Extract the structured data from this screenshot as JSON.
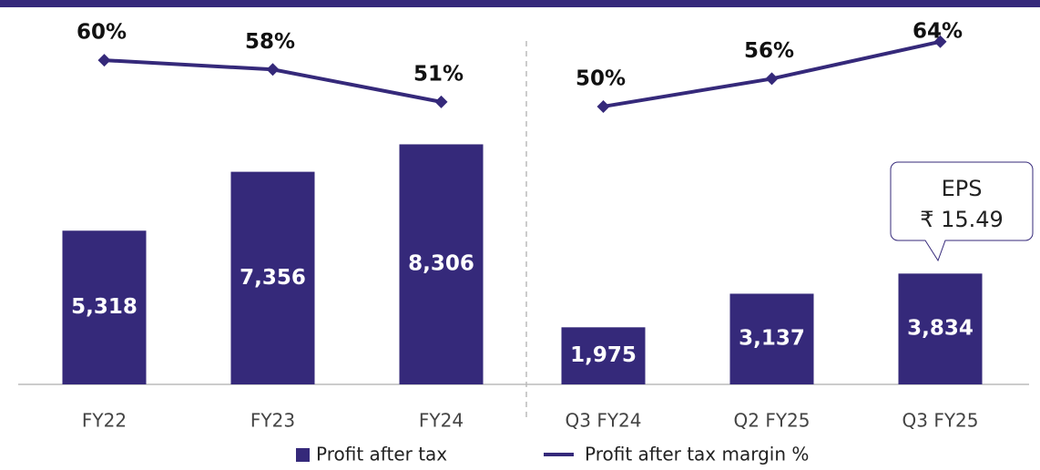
{
  "chart_data": {
    "type": "bar-line",
    "groups": [
      [
        "FY22",
        "FY23",
        "FY24"
      ],
      [
        "Q3 FY24",
        "Q2 FY25",
        "Q3 FY25"
      ]
    ],
    "series": [
      {
        "name": "Profit after tax",
        "type": "bar",
        "color": "#35297a",
        "values": [
          [
            5318,
            7356,
            8306
          ],
          [
            1975,
            3137,
            3834
          ]
        ],
        "value_labels": [
          [
            "5,318",
            "7,356",
            "8,306"
          ],
          [
            "1,975",
            "3,137",
            "3,834"
          ]
        ]
      },
      {
        "name": "Profit after tax margin %",
        "type": "line",
        "axis": "y2",
        "color": "#35297a",
        "values": [
          [
            60,
            58,
            51
          ],
          [
            50,
            56,
            64
          ]
        ],
        "value_labels": [
          [
            "60%",
            "58%",
            "51%"
          ],
          [
            "50%",
            "56%",
            "64%"
          ]
        ]
      }
    ],
    "ylim": [
      0,
      13300
    ],
    "y2lim": [
      -10,
      73
    ],
    "annotation": {
      "lines": [
        "EPS",
        "₹ 15.49"
      ]
    }
  }
}
